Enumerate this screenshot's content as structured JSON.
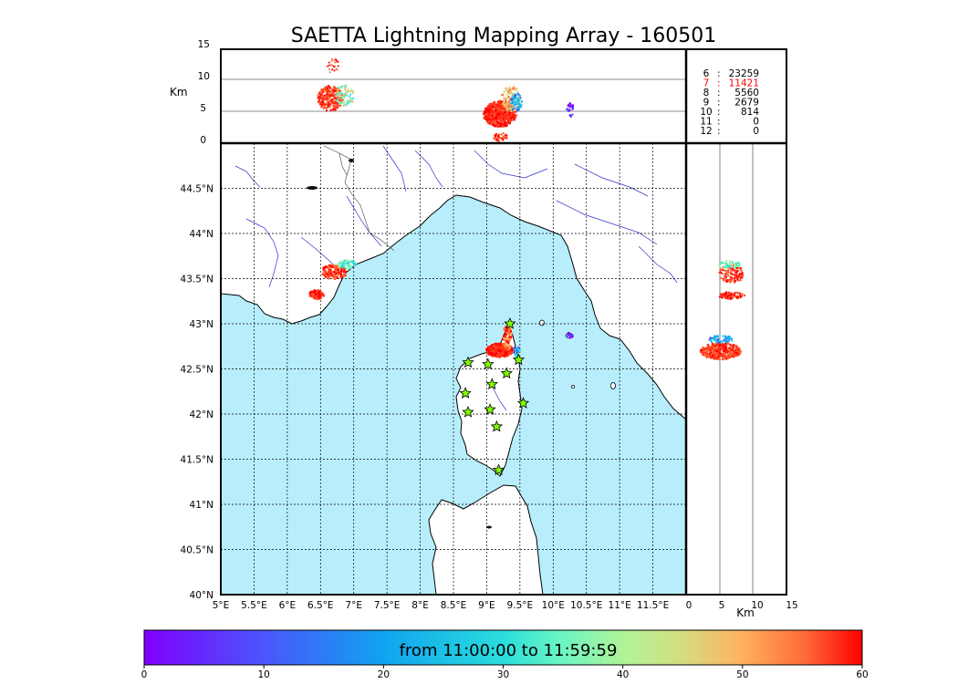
{
  "title": "SAETTA Lightning Mapping Array - 160501",
  "alt_panel": {
    "ylabel": "Km",
    "yticks": [
      "15",
      "10",
      "5",
      "0"
    ]
  },
  "side_panel": {
    "xlabel": "Km",
    "xticks": [
      "0",
      "5",
      "10",
      "15"
    ]
  },
  "station_counts": [
    {
      "stations": "6",
      "count": "23259",
      "color": "#000000"
    },
    {
      "stations": "7",
      "count": "11421",
      "color": "#ff0000"
    },
    {
      "stations": "8",
      "count": "5560",
      "color": "#000000"
    },
    {
      "stations": "9",
      "count": "2679",
      "color": "#000000"
    },
    {
      "stations": "10",
      "count": "814",
      "color": "#000000"
    },
    {
      "stations": "11",
      "count": "0",
      "color": "#000000"
    },
    {
      "stations": "12",
      "count": "0",
      "color": "#000000"
    }
  ],
  "map": {
    "lon_labels": [
      "5°E",
      "5.5°E",
      "6°E",
      "6.5°E",
      "7°E",
      "7.5°E",
      "8°E",
      "8.5°E",
      "9°E",
      "9.5°E",
      "10°E",
      "10.5°E",
      "11°E",
      "11.5°E"
    ],
    "lat_labels": [
      "44.5°N",
      "44°N",
      "43.5°N",
      "43°N",
      "42.5°N",
      "42°N",
      "41.5°N",
      "41°N",
      "40.5°N",
      "40°N"
    ],
    "sea_color": "#b8eefc",
    "land_color": "#ffffff",
    "stations": [
      {
        "lon": 9.35,
        "lat": 43.0
      },
      {
        "lon": 8.72,
        "lat": 42.57
      },
      {
        "lon": 9.02,
        "lat": 42.55
      },
      {
        "lon": 9.48,
        "lat": 42.6
      },
      {
        "lon": 9.3,
        "lat": 42.45
      },
      {
        "lon": 8.68,
        "lat": 42.23
      },
      {
        "lon": 9.08,
        "lat": 42.33
      },
      {
        "lon": 8.72,
        "lat": 42.02
      },
      {
        "lon": 9.05,
        "lat": 42.05
      },
      {
        "lon": 9.55,
        "lat": 42.12
      },
      {
        "lon": 9.15,
        "lat": 41.86
      },
      {
        "lon": 9.18,
        "lat": 41.38
      }
    ]
  },
  "colorbar": {
    "label": "from 11:00:00 to 11:59:59",
    "ticks": [
      "0",
      "10",
      "20",
      "30",
      "40",
      "50",
      "60"
    ]
  }
}
